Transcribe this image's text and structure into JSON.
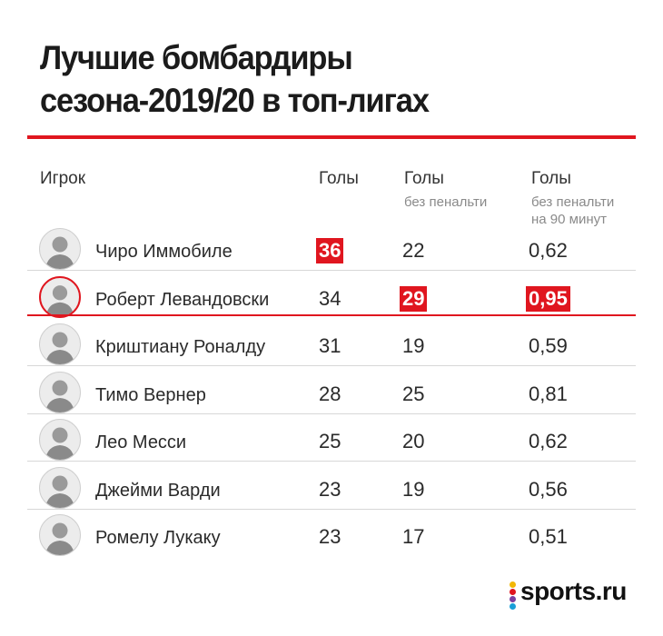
{
  "title": {
    "line1": "Лучшие бомбардиры",
    "line2": "сезона-2019/20 в топ-лигах"
  },
  "columns": {
    "player": "Игрок",
    "goals": "Голы",
    "goals_np": "Голы",
    "goals_np_sub": "без пенальти",
    "goals_np90": "Голы",
    "goals_np90_sub1": "без пенальти",
    "goals_np90_sub2": "на 90 минут"
  },
  "accent_color": "#e0161f",
  "chart_data": {
    "type": "table",
    "headers": [
      "Игрок",
      "Голы",
      "Голы без пенальти",
      "Голы без пенальти на 90 минут"
    ],
    "rows": [
      {
        "player": "Чиро Иммобиле",
        "goals": "36",
        "goals_np": "22",
        "goals_np90": "0,62",
        "highlight": [
          "goals"
        ]
      },
      {
        "player": "Роберт Левандовски",
        "goals": "34",
        "goals_np": "29",
        "goals_np90": "0,95",
        "highlight": [
          "goals_np",
          "goals_np90"
        ],
        "featured": true
      },
      {
        "player": "Криштиану Роналду",
        "goals": "31",
        "goals_np": "19",
        "goals_np90": "0,59",
        "highlight": []
      },
      {
        "player": "Тимо Вернер",
        "goals": "28",
        "goals_np": "25",
        "goals_np90": "0,81",
        "highlight": []
      },
      {
        "player": "Лео Месси",
        "goals": "25",
        "goals_np": "20",
        "goals_np90": "0,62",
        "highlight": []
      },
      {
        "player": "Джейми Варди",
        "goals": "23",
        "goals_np": "19",
        "goals_np90": "0,56",
        "highlight": []
      },
      {
        "player": "Ромелу Лукаку",
        "goals": "23",
        "goals_np": "17",
        "goals_np90": "0,51",
        "highlight": []
      }
    ]
  },
  "logo": {
    "text": "sports.ru",
    "dot_colors": [
      "#f2b705",
      "#e0161f",
      "#7b3fa0",
      "#1a9fd8"
    ]
  }
}
